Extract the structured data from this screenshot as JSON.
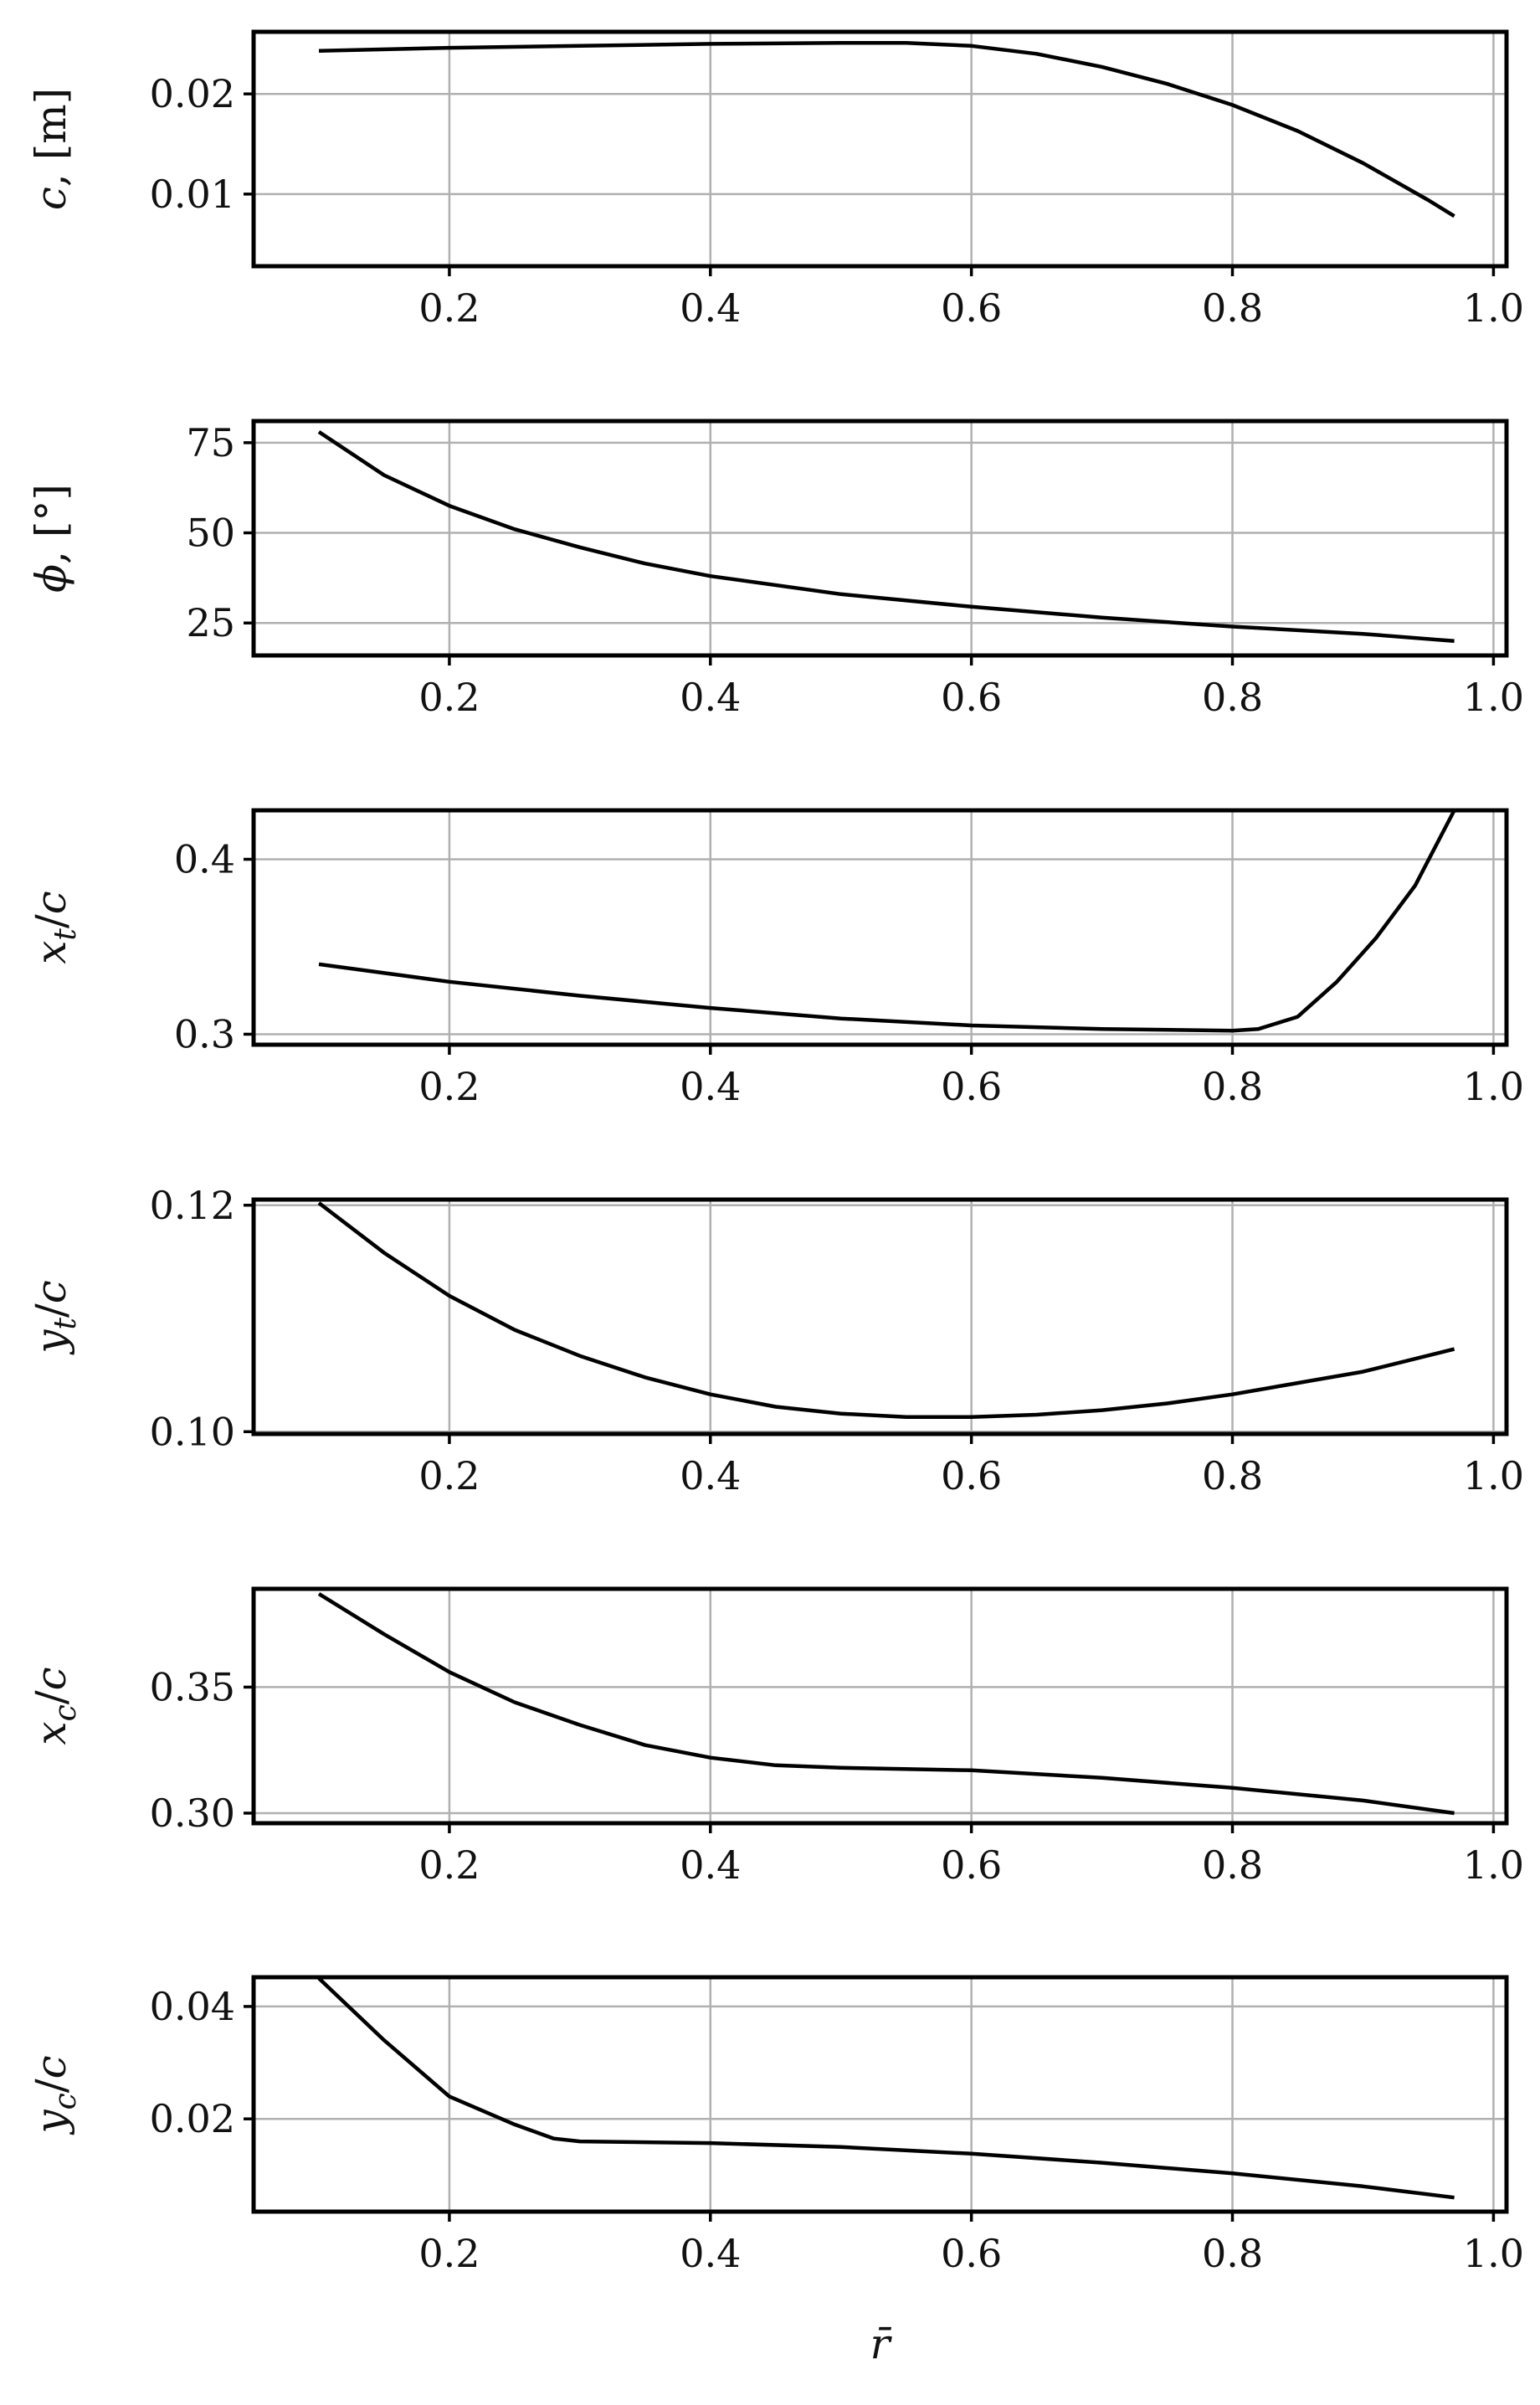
{
  "chart_data": [
    {
      "type": "line",
      "ylabel": "c, [m]",
      "xlim": [
        0.05,
        1.01
      ],
      "ylim": [
        0.0028,
        0.0262
      ],
      "xticks": [
        0.2,
        0.4,
        0.6,
        0.8,
        1.0
      ],
      "xtick_labels": [
        "0.2",
        "0.4",
        "0.6",
        "0.8",
        "1.0"
      ],
      "yticks": [
        0.01,
        0.02
      ],
      "ytick_labels": [
        "0.01",
        "0.02"
      ],
      "grid": true,
      "x": [
        0.1,
        0.2,
        0.3,
        0.4,
        0.5,
        0.55,
        0.6,
        0.65,
        0.7,
        0.75,
        0.8,
        0.85,
        0.9,
        0.95,
        0.97
      ],
      "y": [
        0.0243,
        0.0246,
        0.0248,
        0.025,
        0.0251,
        0.0251,
        0.0248,
        0.024,
        0.0227,
        0.021,
        0.0189,
        0.0163,
        0.0131,
        0.0094,
        0.0078
      ]
    },
    {
      "type": "line",
      "ylabel": "ϕ, [°]",
      "xlim": [
        0.05,
        1.01
      ],
      "ylim": [
        16,
        81
      ],
      "xticks": [
        0.2,
        0.4,
        0.6,
        0.8,
        1.0
      ],
      "xtick_labels": [
        "0.2",
        "0.4",
        "0.6",
        "0.8",
        "1.0"
      ],
      "yticks": [
        25,
        50,
        75
      ],
      "ytick_labels": [
        "25",
        "50",
        "75"
      ],
      "grid": true,
      "x": [
        0.1,
        0.15,
        0.2,
        0.25,
        0.3,
        0.35,
        0.4,
        0.5,
        0.6,
        0.7,
        0.8,
        0.9,
        0.97
      ],
      "y": [
        78,
        66,
        57.5,
        51,
        46,
        41.5,
        38,
        33,
        29.5,
        26.5,
        24,
        22,
        20
      ]
    },
    {
      "type": "line",
      "ylabel": "x_t/c",
      "xlim": [
        0.05,
        1.01
      ],
      "ylim": [
        0.294,
        0.428
      ],
      "xticks": [
        0.2,
        0.4,
        0.6,
        0.8,
        1.0
      ],
      "xtick_labels": [
        "0.2",
        "0.4",
        "0.6",
        "0.8",
        "1.0"
      ],
      "yticks": [
        0.3,
        0.4
      ],
      "ytick_labels": [
        "0.3",
        "0.4"
      ],
      "grid": true,
      "x": [
        0.1,
        0.2,
        0.3,
        0.4,
        0.5,
        0.6,
        0.7,
        0.8,
        0.82,
        0.85,
        0.88,
        0.91,
        0.94,
        0.97
      ],
      "y": [
        0.34,
        0.33,
        0.322,
        0.315,
        0.309,
        0.305,
        0.303,
        0.302,
        0.303,
        0.31,
        0.33,
        0.355,
        0.385,
        0.428
      ]
    },
    {
      "type": "line",
      "ylabel": "y_t/c",
      "xlim": [
        0.05,
        1.01
      ],
      "ylim": [
        0.0998,
        0.1205
      ],
      "xticks": [
        0.2,
        0.4,
        0.6,
        0.8,
        1.0
      ],
      "xtick_labels": [
        "0.2",
        "0.4",
        "0.6",
        "0.8",
        "1.0"
      ],
      "yticks": [
        0.1,
        0.12
      ],
      "ytick_labels": [
        "0.10",
        "0.12"
      ],
      "grid": true,
      "x": [
        0.1,
        0.15,
        0.2,
        0.25,
        0.3,
        0.35,
        0.4,
        0.45,
        0.5,
        0.55,
        0.6,
        0.65,
        0.7,
        0.75,
        0.8,
        0.85,
        0.9,
        0.97
      ],
      "y": [
        0.1202,
        0.1158,
        0.112,
        0.109,
        0.1067,
        0.1048,
        0.1033,
        0.1022,
        0.1016,
        0.1013,
        0.1013,
        0.1015,
        0.1019,
        0.1025,
        0.1033,
        0.1043,
        0.1053,
        0.1073
      ]
    },
    {
      "type": "line",
      "ylabel": "x_c/c",
      "xlim": [
        0.05,
        1.01
      ],
      "ylim": [
        0.296,
        0.389
      ],
      "xticks": [
        0.2,
        0.4,
        0.6,
        0.8,
        1.0
      ],
      "xtick_labels": [
        "0.2",
        "0.4",
        "0.6",
        "0.8",
        "1.0"
      ],
      "yticks": [
        0.3,
        0.35
      ],
      "ytick_labels": [
        "0.30",
        "0.35"
      ],
      "grid": true,
      "x": [
        0.1,
        0.15,
        0.2,
        0.25,
        0.3,
        0.35,
        0.4,
        0.45,
        0.5,
        0.6,
        0.7,
        0.8,
        0.9,
        0.97
      ],
      "y": [
        0.387,
        0.371,
        0.356,
        0.344,
        0.335,
        0.327,
        0.322,
        0.319,
        0.318,
        0.317,
        0.314,
        0.31,
        0.305,
        0.3
      ]
    },
    {
      "type": "line",
      "xlabel": "r̄",
      "ylabel": "y_c/c",
      "xlim": [
        0.05,
        1.01
      ],
      "ylim": [
        0.0035,
        0.0452
      ],
      "xticks": [
        0.2,
        0.4,
        0.6,
        0.8,
        1.0
      ],
      "xtick_labels": [
        "0.2",
        "0.4",
        "0.6",
        "0.8",
        "1.0"
      ],
      "yticks": [
        0.02,
        0.04
      ],
      "ytick_labels": [
        "0.02",
        "0.04"
      ],
      "grid": true,
      "x": [
        0.1,
        0.15,
        0.2,
        0.25,
        0.28,
        0.3,
        0.4,
        0.5,
        0.6,
        0.7,
        0.8,
        0.9,
        0.97
      ],
      "y": [
        0.045,
        0.034,
        0.024,
        0.019,
        0.0165,
        0.016,
        0.0157,
        0.015,
        0.0138,
        0.0122,
        0.0103,
        0.008,
        0.006
      ]
    }
  ]
}
